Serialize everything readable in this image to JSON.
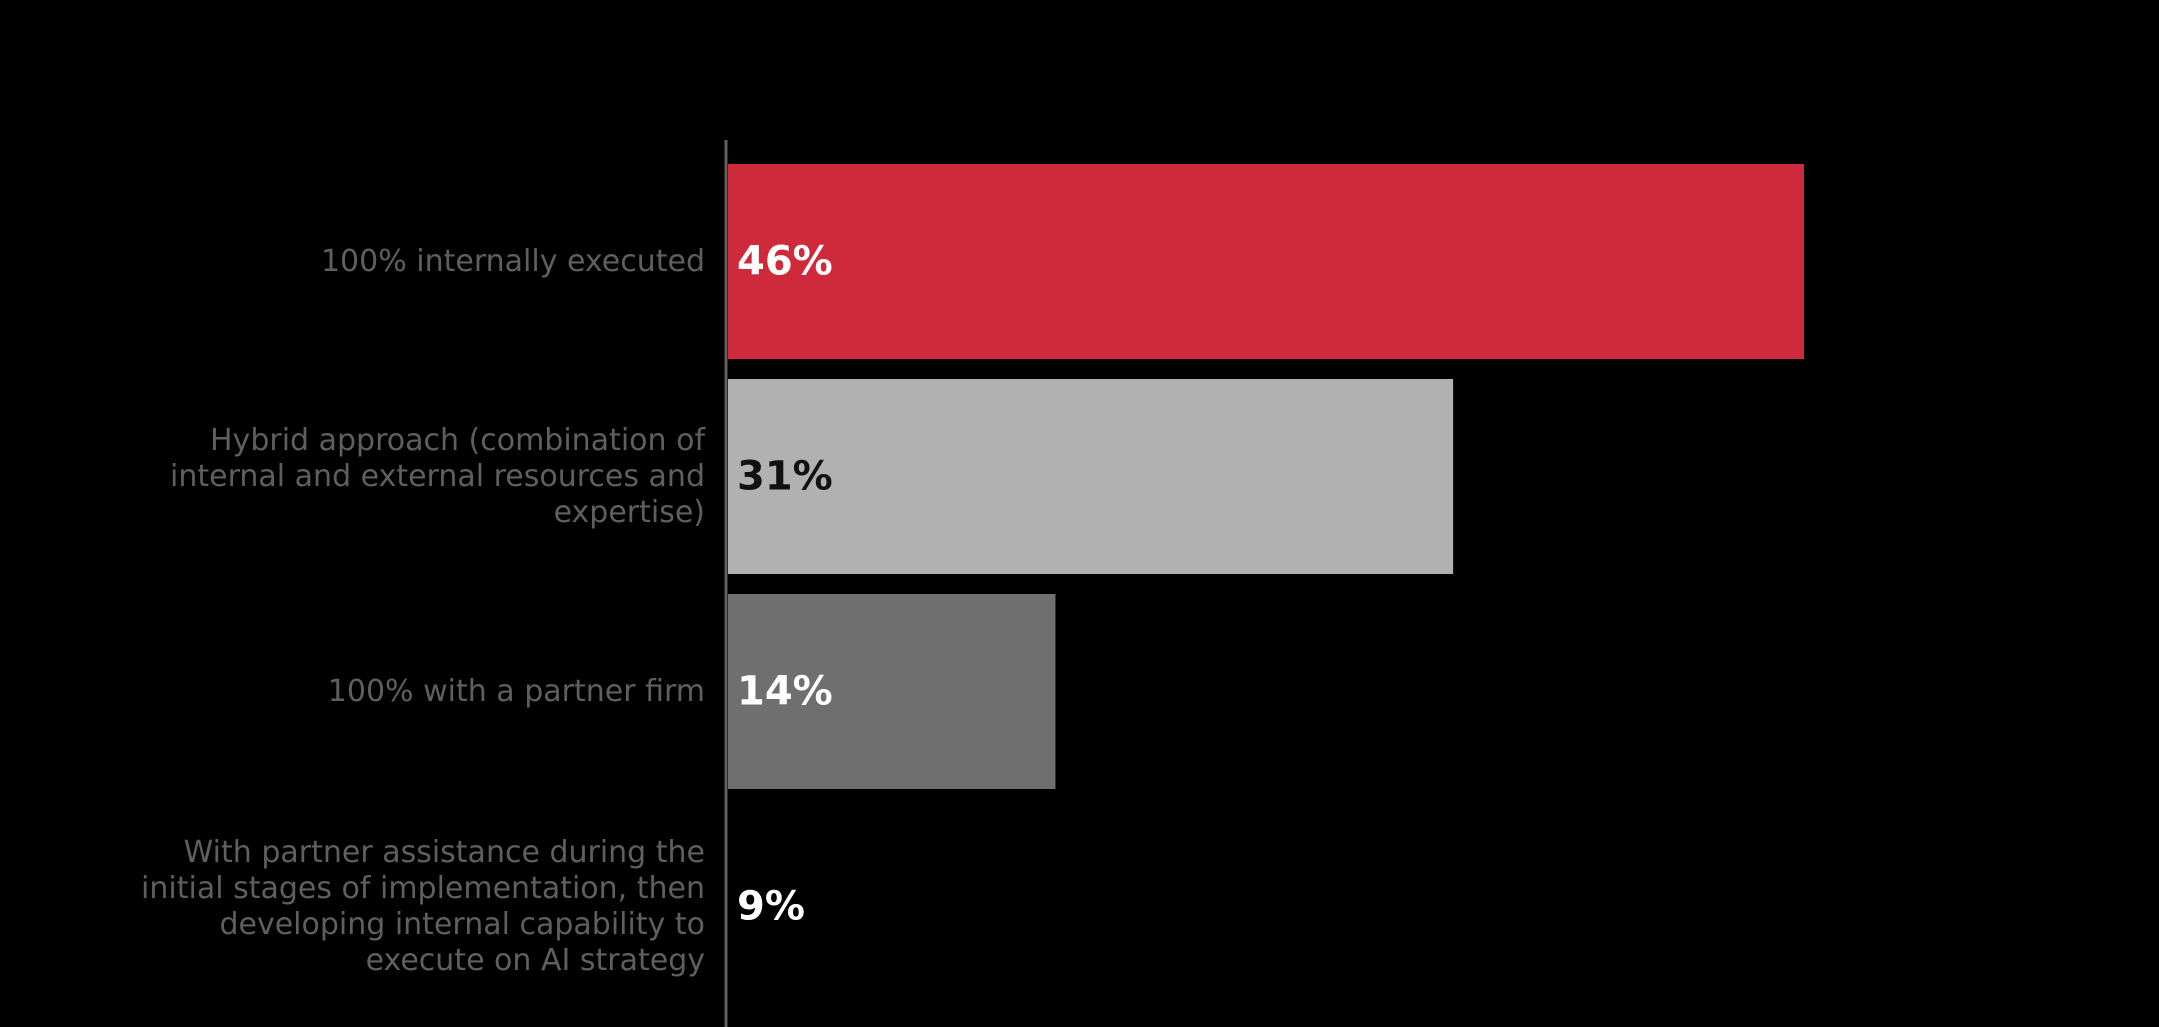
{
  "chart_data": {
    "type": "bar",
    "orientation": "horizontal",
    "categories": [
      "100% internally executed",
      "Hybrid approach (combination of internal and external resources and expertise)",
      "100% with a partner firm",
      "With partner assistance during the initial stages of implementation, then developing internal capability to execute on AI strategy"
    ],
    "category_lines": [
      [
        "100% internally executed"
      ],
      [
        "Hybrid approach (combination of",
        "internal and external resources and",
        "expertise)"
      ],
      [
        "100% with a partner firm"
      ],
      [
        "With partner assistance during the",
        "initial stages of implementation, then",
        "developing internal capability to",
        "execute on AI strategy"
      ]
    ],
    "values": [
      46,
      31,
      14,
      9
    ],
    "value_labels": [
      "46%",
      "31%",
      "14%",
      "9%"
    ],
    "bar_colors": [
      "#cf2a3c",
      "#b1b1b1",
      "#6f6f6f",
      "#000000"
    ],
    "value_label_colors": [
      "#ffffff",
      "#111111",
      "#ffffff",
      "#ffffff"
    ],
    "category_label_color": "#5f5f5f",
    "axis_color": "#5f5f5f",
    "background": "#000000",
    "xlim": [
      0,
      60
    ],
    "grid": false,
    "legend": "none",
    "title": "",
    "xlabel": "",
    "ylabel": ""
  }
}
